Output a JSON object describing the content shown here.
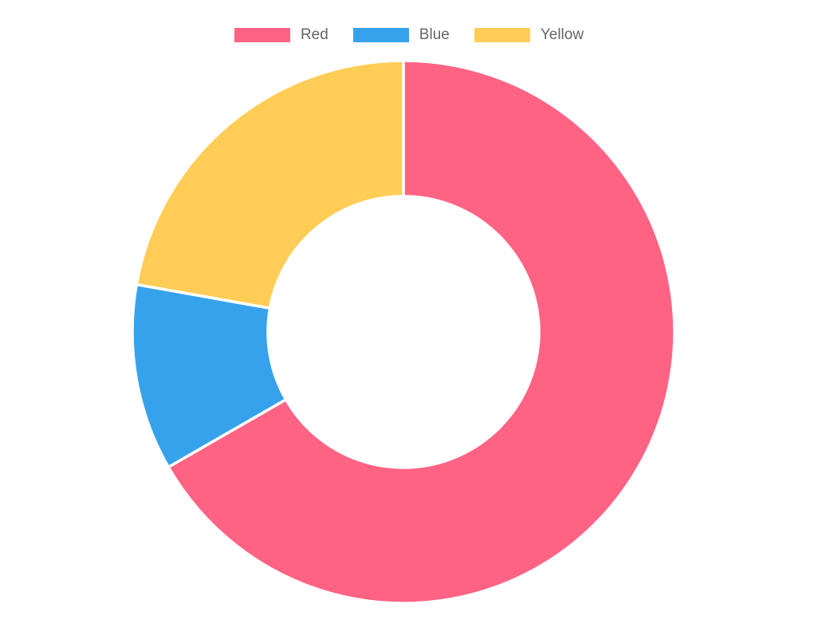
{
  "window": {
    "background_color": "#ffffff"
  },
  "legend": {
    "position": "top",
    "label_color": "#666666",
    "items": [
      {
        "label": "Red",
        "color": "#FF6384"
      },
      {
        "label": "Blue",
        "color": "#36A2EB"
      },
      {
        "label": "Yellow",
        "color": "#FFCD56"
      }
    ]
  },
  "chart_data": {
    "type": "pie",
    "subtype": "doughnut",
    "title": "",
    "categories": [
      "Red",
      "Blue",
      "Yellow"
    ],
    "values_percent": [
      66.7,
      11.1,
      22.2
    ],
    "colors": [
      "#FF6384",
      "#36A2EB",
      "#FFCD56"
    ],
    "segment_border_color": "#FFFFFF",
    "segment_border_width": 3.5,
    "cutout_percent": 50,
    "rotation_start_deg": 0,
    "direction": "clockwise",
    "legend_position": "top",
    "grid": "off"
  }
}
